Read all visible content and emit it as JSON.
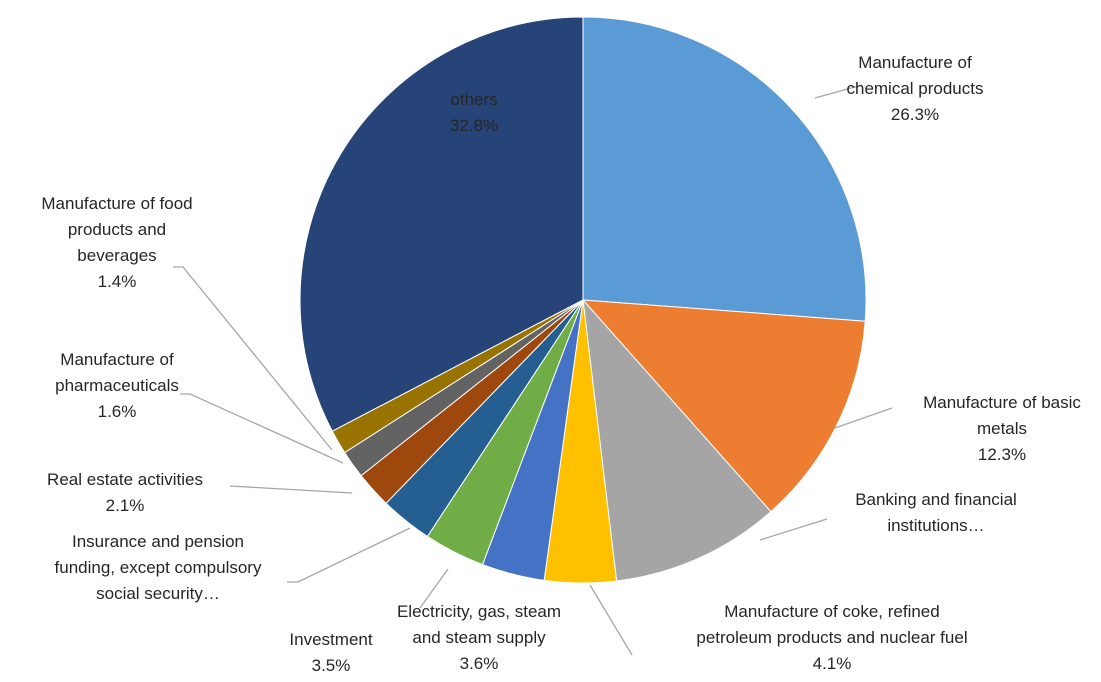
{
  "chart_data": {
    "type": "pie",
    "title": "",
    "slices": [
      {
        "lines": [
          "Manufacture of",
          "chemical products"
        ],
        "value": 26.3,
        "label": "26.3%",
        "color": "#5b9bd5"
      },
      {
        "lines": [
          "Manufacture of basic",
          "metals"
        ],
        "value": 12.3,
        "label": "12.3%",
        "color": "#ed7d31"
      },
      {
        "lines": [
          "Banking and financial",
          "institutions…"
        ],
        "value": 9.7,
        "label": "",
        "color": "#a5a5a5"
      },
      {
        "lines": [
          "Manufacture of coke, refined",
          "petroleum products and nuclear fuel"
        ],
        "value": 4.1,
        "label": "4.1%",
        "color": "#ffc000"
      },
      {
        "lines": [
          "Electricity, gas, steam",
          "and steam supply"
        ],
        "value": 3.6,
        "label": "3.6%",
        "color": "#4472c4"
      },
      {
        "lines": [
          "Investment"
        ],
        "value": 3.5,
        "label": "3.5%",
        "color": "#70ad47"
      },
      {
        "lines": [
          "Insurance and pension",
          "funding, except compulsory",
          "social security…"
        ],
        "value": 3.0,
        "label": "",
        "color": "#255e91"
      },
      {
        "lines": [
          "Real estate activities"
        ],
        "value": 2.1,
        "label": "2.1%",
        "color": "#9e480e"
      },
      {
        "lines": [
          "Manufacture of",
          "pharmaceuticals"
        ],
        "value": 1.6,
        "label": "1.6%",
        "color": "#636363"
      },
      {
        "lines": [
          "Manufacture of food",
          "products and",
          "beverages"
        ],
        "value": 1.4,
        "label": "1.4%",
        "color": "#997300"
      },
      {
        "lines": [
          "others"
        ],
        "value": 32.8,
        "label": "32.8%",
        "color": "#264478"
      }
    ]
  }
}
